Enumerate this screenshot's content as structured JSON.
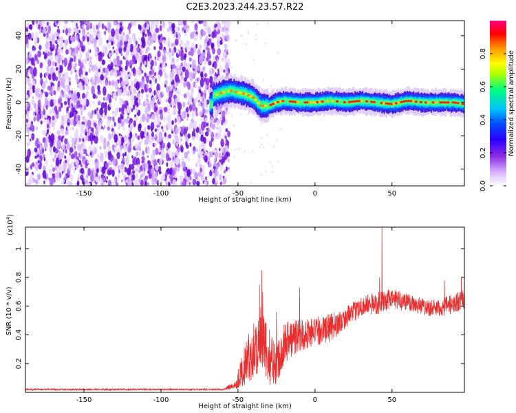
{
  "title": "C2E3.2023.244.23.57.R22",
  "chart_data": [
    {
      "type": "heatmap",
      "xlabel": "Height of straight line (km)",
      "ylabel": "Frequency (Hz)",
      "xlim": [
        -188,
        97
      ],
      "ylim": [
        -50,
        49
      ],
      "x_ticks": [
        -150,
        -100,
        -50,
        0,
        50
      ],
      "y_ticks": [
        -40,
        -20,
        0,
        20,
        40
      ],
      "colorbar": {
        "label": "Normalized spectral amplitude",
        "ticks": [
          0.0,
          0.2,
          0.4,
          0.6,
          0.8
        ],
        "range": [
          0,
          1
        ],
        "colors": [
          "#ffffff",
          "#d9b6ff",
          "#8a2be2",
          "#5a00e0",
          "#0000ff",
          "#00bfff",
          "#00ff7f",
          "#ffff00",
          "#ff8c00",
          "#ff0000",
          "#ff007f"
        ]
      },
      "regions": {
        "noise_x_range": [
          -188,
          -60
        ],
        "signal_x_range": [
          -68,
          97
        ],
        "signal_center_hz": [
          [
            -66,
            4
          ],
          [
            -60,
            6
          ],
          [
            -55,
            7
          ],
          [
            -50,
            6
          ],
          [
            -45,
            5
          ],
          [
            -40,
            3
          ],
          [
            -35,
            -2
          ],
          [
            -30,
            -2
          ],
          [
            -25,
            0
          ],
          [
            -20,
            1
          ],
          [
            -10,
            0
          ],
          [
            0,
            0
          ],
          [
            10,
            1
          ],
          [
            20,
            0
          ],
          [
            30,
            1
          ],
          [
            40,
            0
          ],
          [
            50,
            -1
          ],
          [
            60,
            1
          ],
          [
            70,
            0
          ],
          [
            80,
            0
          ],
          [
            90,
            0
          ],
          [
            97,
            -1
          ]
        ]
      },
      "grid": false
    },
    {
      "type": "line",
      "series": [
        {
          "color": "#e83030"
        }
      ],
      "xlabel": "Height of straight line (km)",
      "ylabel": "SNR (10 * v/v)",
      "y_multiplier": "(x10",
      "y_multiplier_exp": "4",
      "y_multiplier_close": ")",
      "xlim": [
        -188,
        97
      ],
      "ylim": [
        0,
        1.15
      ],
      "x_ticks": [
        -150,
        -100,
        -50,
        0,
        50
      ],
      "y_ticks": [
        0.2,
        0.4,
        0.6,
        0.8,
        1.0
      ],
      "envelope": [
        {
          "x": -188,
          "base": 0.02,
          "amp": 0.005
        },
        {
          "x": -60,
          "base": 0.02,
          "amp": 0.005
        },
        {
          "x": -52,
          "base": 0.05,
          "amp": 0.03
        },
        {
          "x": -45,
          "base": 0.2,
          "amp": 0.15
        },
        {
          "x": -40,
          "base": 0.3,
          "amp": 0.2
        },
        {
          "x": -35,
          "base": 0.35,
          "amp": 0.25
        },
        {
          "x": -30,
          "base": 0.25,
          "amp": 0.2
        },
        {
          "x": -25,
          "base": 0.2,
          "amp": 0.15
        },
        {
          "x": -20,
          "base": 0.35,
          "amp": 0.15
        },
        {
          "x": -10,
          "base": 0.4,
          "amp": 0.12
        },
        {
          "x": 0,
          "base": 0.42,
          "amp": 0.1
        },
        {
          "x": 10,
          "base": 0.45,
          "amp": 0.1
        },
        {
          "x": 20,
          "base": 0.52,
          "amp": 0.07
        },
        {
          "x": 30,
          "base": 0.6,
          "amp": 0.07
        },
        {
          "x": 40,
          "base": 0.62,
          "amp": 0.08
        },
        {
          "x": 50,
          "base": 0.65,
          "amp": 0.07
        },
        {
          "x": 60,
          "base": 0.63,
          "amp": 0.07
        },
        {
          "x": 70,
          "base": 0.6,
          "amp": 0.06
        },
        {
          "x": 80,
          "base": 0.58,
          "amp": 0.06
        },
        {
          "x": 90,
          "base": 0.62,
          "amp": 0.07
        },
        {
          "x": 97,
          "base": 0.65,
          "amp": 0.07
        }
      ],
      "spikes": [
        {
          "x": -34.5,
          "y": 0.85
        },
        {
          "x": -36,
          "y": 0.75
        },
        {
          "x": -34,
          "y": 0.7
        },
        {
          "x": -25,
          "y": 0.56
        },
        {
          "x": -10,
          "y": 0.73
        },
        {
          "x": 43.5,
          "y": 1.15
        },
        {
          "x": 42,
          "y": 0.8
        },
        {
          "x": 84,
          "y": 0.78
        },
        {
          "x": 95,
          "y": 0.8
        }
      ]
    }
  ]
}
